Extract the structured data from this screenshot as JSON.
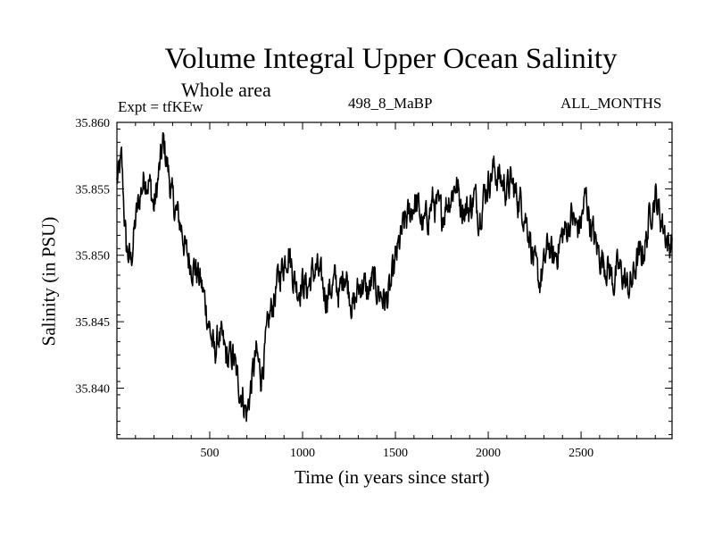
{
  "chart_data": {
    "type": "line",
    "title": "Volume Integral Upper Ocean Salinity",
    "subtitle": "Whole area",
    "annotations": {
      "left": "Expt = tfKEw",
      "center": "498_8_MaBP",
      "right": "ALL_MONTHS"
    },
    "xlabel": "Time (in years since start)",
    "ylabel": "Salinity (in PSU)",
    "xlim": [
      0,
      2990
    ],
    "ylim": [
      35.8362,
      35.86
    ],
    "xticks": [
      500,
      1000,
      1500,
      2000,
      2500
    ],
    "xtick_labels": [
      "500",
      "1000",
      "1500",
      "2000",
      "2500"
    ],
    "yticks": [
      35.84,
      35.845,
      35.85,
      35.855,
      35.86
    ],
    "ytick_labels": [
      "35.840",
      "35.845",
      "35.850",
      "35.855",
      "35.860"
    ],
    "grid": false,
    "series": [
      {
        "color": "#000000",
        "x": [
          0,
          25,
          50,
          75,
          100,
          125,
          150,
          175,
          200,
          225,
          250,
          275,
          300,
          325,
          350,
          375,
          400,
          425,
          450,
          475,
          500,
          525,
          550,
          575,
          600,
          625,
          650,
          675,
          700,
          725,
          750,
          775,
          800,
          825,
          850,
          875,
          900,
          925,
          950,
          975,
          1000,
          1025,
          1050,
          1075,
          1100,
          1125,
          1150,
          1175,
          1200,
          1225,
          1250,
          1275,
          1300,
          1325,
          1350,
          1375,
          1400,
          1425,
          1450,
          1475,
          1500,
          1525,
          1550,
          1575,
          1600,
          1625,
          1650,
          1675,
          1700,
          1725,
          1750,
          1775,
          1800,
          1825,
          1850,
          1875,
          1900,
          1925,
          1950,
          1975,
          2000,
          2025,
          2050,
          2075,
          2100,
          2125,
          2150,
          2175,
          2200,
          2225,
          2250,
          2275,
          2300,
          2325,
          2350,
          2375,
          2400,
          2425,
          2450,
          2475,
          2500,
          2525,
          2550,
          2575,
          2600,
          2625,
          2650,
          2675,
          2700,
          2725,
          2750,
          2775,
          2800,
          2825,
          2850,
          2875,
          2900,
          2925,
          2950,
          2975,
          2990
        ],
        "y": [
          35.8555,
          35.857,
          35.8505,
          35.8495,
          35.8525,
          35.8545,
          35.856,
          35.8555,
          35.8535,
          35.856,
          35.8585,
          35.8565,
          35.854,
          35.853,
          35.852,
          35.85,
          35.8495,
          35.849,
          35.848,
          35.8465,
          35.8445,
          35.8425,
          35.844,
          35.843,
          35.842,
          35.8425,
          35.8405,
          35.8395,
          35.838,
          35.8405,
          35.8425,
          35.841,
          35.843,
          35.8455,
          35.847,
          35.8485,
          35.8495,
          35.8505,
          35.8485,
          35.8475,
          35.848,
          35.8475,
          35.8485,
          35.849,
          35.848,
          35.847,
          35.8475,
          35.848,
          35.847,
          35.849,
          35.8475,
          35.846,
          35.8475,
          35.848,
          35.847,
          35.848,
          35.8475,
          35.847,
          35.8465,
          35.8475,
          35.8495,
          35.851,
          35.8525,
          35.853,
          35.854,
          35.8535,
          35.852,
          35.853,
          35.854,
          35.8535,
          35.853,
          35.854,
          35.8545,
          35.8555,
          35.854,
          35.8535,
          35.8535,
          35.8545,
          35.853,
          35.8545,
          35.8555,
          35.8565,
          35.856,
          35.8555,
          35.855,
          35.8555,
          35.8545,
          35.854,
          35.853,
          35.8515,
          35.849,
          35.848,
          35.849,
          35.851,
          35.8495,
          35.8505,
          35.8515,
          35.852,
          35.853,
          35.852,
          35.8525,
          35.8545,
          35.8525,
          35.851,
          35.85,
          35.8495,
          35.849,
          35.848,
          35.849,
          35.8485,
          35.8475,
          35.848,
          35.8495,
          35.85,
          35.851,
          35.8535,
          35.8545,
          35.853,
          35.852,
          35.8505,
          35.8515
        ]
      }
    ]
  }
}
